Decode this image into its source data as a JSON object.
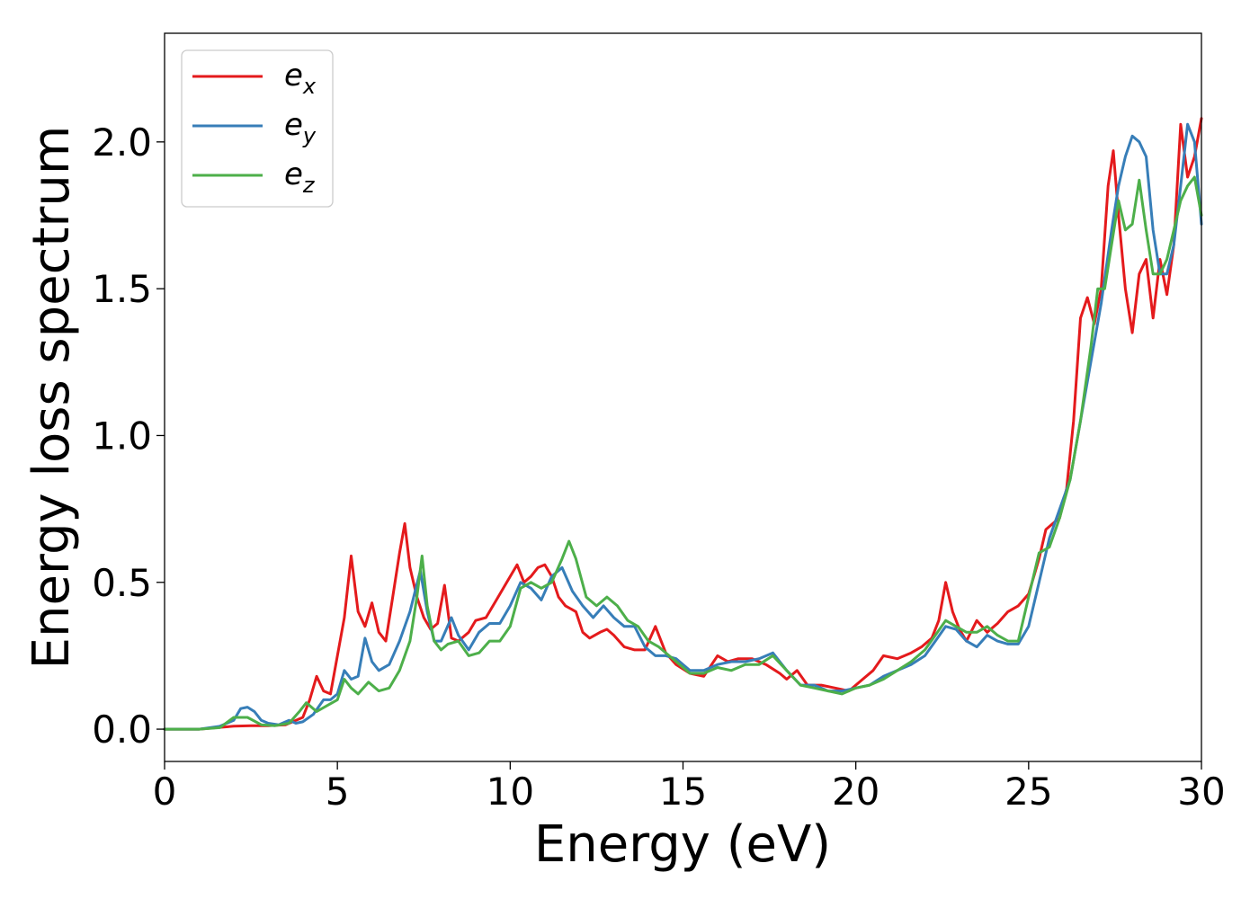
{
  "chart_data": {
    "type": "line",
    "title": "",
    "xlabel": "Energy (eV)",
    "ylabel": "Energy loss spectrum",
    "xlim": [
      0,
      30
    ],
    "ylim": [
      -0.11,
      2.37
    ],
    "xticks": [
      0,
      5,
      10,
      15,
      20,
      25,
      30
    ],
    "xtick_labels": [
      "0",
      "5",
      "10",
      "15",
      "20",
      "25",
      "30"
    ],
    "yticks": [
      0.0,
      0.5,
      1.0,
      1.5,
      2.0
    ],
    "ytick_labels": [
      "0.0",
      "0.5",
      "1.0",
      "1.5",
      "2.0"
    ],
    "grid": false,
    "legend_position": "top-left",
    "series": [
      {
        "name": "e_x",
        "legend_base": "e",
        "legend_sub": "x",
        "color": "#e41a1c",
        "x": [
          0,
          1,
          1.5,
          2,
          2.5,
          3,
          3.5,
          4,
          4.2,
          4.4,
          4.6,
          4.8,
          5.0,
          5.2,
          5.4,
          5.6,
          5.8,
          6.0,
          6.2,
          6.4,
          6.6,
          6.8,
          6.95,
          7.1,
          7.3,
          7.5,
          7.7,
          7.9,
          8.1,
          8.3,
          8.5,
          8.8,
          9.0,
          9.3,
          9.6,
          9.9,
          10.2,
          10.4,
          10.6,
          10.8,
          11.0,
          11.2,
          11.4,
          11.6,
          11.9,
          12.1,
          12.3,
          12.6,
          12.8,
          13.0,
          13.3,
          13.6,
          13.9,
          14.2,
          14.5,
          14.8,
          15.2,
          15.6,
          16.0,
          16.3,
          16.6,
          17.0,
          17.4,
          17.8,
          18.0,
          18.3,
          18.6,
          19.0,
          19.4,
          19.8,
          20.2,
          20.5,
          20.8,
          21.2,
          21.6,
          21.9,
          22.2,
          22.4,
          22.6,
          22.8,
          23.0,
          23.2,
          23.5,
          23.8,
          24.1,
          24.4,
          24.7,
          25.0,
          25.3,
          25.5,
          25.7,
          25.9,
          26.1,
          26.3,
          26.5,
          26.7,
          26.9,
          27.1,
          27.3,
          27.45,
          27.6,
          27.8,
          28.0,
          28.2,
          28.4,
          28.6,
          28.8,
          29.0,
          29.2,
          29.4,
          29.6,
          29.8,
          30.0
        ],
        "y": [
          0.0,
          0.0,
          0.005,
          0.01,
          0.012,
          0.012,
          0.015,
          0.04,
          0.1,
          0.18,
          0.13,
          0.12,
          0.25,
          0.38,
          0.59,
          0.4,
          0.35,
          0.43,
          0.33,
          0.3,
          0.45,
          0.6,
          0.7,
          0.55,
          0.45,
          0.38,
          0.34,
          0.36,
          0.49,
          0.31,
          0.3,
          0.33,
          0.37,
          0.38,
          0.44,
          0.5,
          0.56,
          0.5,
          0.52,
          0.55,
          0.56,
          0.52,
          0.45,
          0.42,
          0.4,
          0.33,
          0.31,
          0.33,
          0.34,
          0.32,
          0.28,
          0.27,
          0.27,
          0.35,
          0.26,
          0.22,
          0.19,
          0.18,
          0.25,
          0.23,
          0.24,
          0.24,
          0.22,
          0.19,
          0.17,
          0.2,
          0.15,
          0.15,
          0.14,
          0.13,
          0.17,
          0.2,
          0.25,
          0.24,
          0.26,
          0.28,
          0.31,
          0.37,
          0.5,
          0.4,
          0.34,
          0.3,
          0.37,
          0.33,
          0.36,
          0.4,
          0.42,
          0.46,
          0.58,
          0.68,
          0.7,
          0.72,
          0.82,
          1.05,
          1.4,
          1.47,
          1.38,
          1.5,
          1.85,
          1.97,
          1.75,
          1.5,
          1.35,
          1.55,
          1.6,
          1.4,
          1.6,
          1.48,
          1.65,
          2.06,
          1.88,
          1.95,
          2.08
        ]
      },
      {
        "name": "e_y",
        "legend_base": "e",
        "legend_sub": "y",
        "color": "#377eb8",
        "x": [
          0,
          1,
          1.6,
          2.0,
          2.2,
          2.4,
          2.6,
          2.8,
          3.0,
          3.3,
          3.6,
          3.8,
          4.0,
          4.3,
          4.6,
          4.8,
          5.0,
          5.2,
          5.4,
          5.6,
          5.8,
          6.0,
          6.2,
          6.5,
          6.8,
          7.1,
          7.4,
          7.6,
          7.8,
          8.0,
          8.3,
          8.5,
          8.8,
          9.1,
          9.4,
          9.7,
          10.0,
          10.3,
          10.6,
          10.9,
          11.2,
          11.5,
          11.8,
          12.1,
          12.4,
          12.7,
          13.0,
          13.3,
          13.6,
          13.9,
          14.2,
          14.5,
          14.8,
          15.2,
          15.6,
          16.0,
          16.4,
          16.8,
          17.2,
          17.6,
          18.0,
          18.4,
          18.8,
          19.2,
          19.6,
          20.0,
          20.4,
          20.8,
          21.2,
          21.6,
          22.0,
          22.3,
          22.6,
          22.9,
          23.2,
          23.5,
          23.8,
          24.1,
          24.4,
          24.7,
          25.0,
          25.3,
          25.6,
          25.9,
          26.2,
          26.5,
          26.8,
          27.1,
          27.4,
          27.6,
          27.8,
          28.0,
          28.2,
          28.4,
          28.6,
          28.8,
          29.0,
          29.2,
          29.4,
          29.6,
          29.8,
          30.0
        ],
        "y": [
          0.0,
          0.0,
          0.01,
          0.03,
          0.07,
          0.075,
          0.06,
          0.03,
          0.02,
          0.015,
          0.03,
          0.02,
          0.025,
          0.05,
          0.1,
          0.1,
          0.12,
          0.2,
          0.17,
          0.18,
          0.31,
          0.23,
          0.2,
          0.22,
          0.3,
          0.4,
          0.54,
          0.4,
          0.3,
          0.3,
          0.38,
          0.32,
          0.27,
          0.33,
          0.36,
          0.36,
          0.42,
          0.5,
          0.48,
          0.44,
          0.52,
          0.55,
          0.47,
          0.42,
          0.38,
          0.42,
          0.38,
          0.35,
          0.35,
          0.28,
          0.25,
          0.25,
          0.24,
          0.2,
          0.2,
          0.22,
          0.23,
          0.23,
          0.24,
          0.26,
          0.2,
          0.15,
          0.15,
          0.13,
          0.13,
          0.14,
          0.15,
          0.18,
          0.2,
          0.22,
          0.25,
          0.3,
          0.35,
          0.34,
          0.3,
          0.28,
          0.32,
          0.3,
          0.29,
          0.29,
          0.35,
          0.5,
          0.65,
          0.75,
          0.85,
          1.05,
          1.25,
          1.45,
          1.7,
          1.85,
          1.95,
          2.02,
          2.0,
          1.95,
          1.7,
          1.55,
          1.55,
          1.65,
          1.85,
          2.06,
          2.0,
          1.72
        ]
      },
      {
        "name": "e_z",
        "legend_base": "e",
        "legend_sub": "z",
        "color": "#4daf4a",
        "x": [
          0,
          1,
          1.6,
          2.0,
          2.4,
          2.8,
          3.2,
          3.6,
          3.9,
          4.1,
          4.4,
          4.7,
          5.0,
          5.2,
          5.4,
          5.6,
          5.9,
          6.2,
          6.5,
          6.8,
          7.1,
          7.3,
          7.45,
          7.6,
          7.8,
          8.0,
          8.2,
          8.5,
          8.8,
          9.1,
          9.4,
          9.7,
          10.0,
          10.3,
          10.6,
          10.9,
          11.2,
          11.5,
          11.7,
          11.9,
          12.2,
          12.5,
          12.8,
          13.1,
          13.4,
          13.7,
          14.0,
          14.3,
          14.6,
          14.9,
          15.2,
          15.6,
          16.0,
          16.4,
          16.8,
          17.2,
          17.6,
          18.0,
          18.4,
          18.8,
          19.2,
          19.6,
          20.0,
          20.4,
          20.8,
          21.2,
          21.6,
          22.0,
          22.3,
          22.6,
          22.9,
          23.2,
          23.5,
          23.8,
          24.1,
          24.4,
          24.7,
          25.0,
          25.3,
          25.6,
          25.9,
          26.2,
          26.5,
          26.8,
          27.0,
          27.2,
          27.4,
          27.6,
          27.8,
          28.0,
          28.2,
          28.4,
          28.6,
          28.8,
          29.0,
          29.2,
          29.4,
          29.6,
          29.8,
          30.0
        ],
        "y": [
          0.0,
          0.0,
          0.005,
          0.04,
          0.04,
          0.015,
          0.012,
          0.02,
          0.06,
          0.09,
          0.06,
          0.08,
          0.1,
          0.17,
          0.14,
          0.12,
          0.16,
          0.13,
          0.14,
          0.2,
          0.3,
          0.45,
          0.59,
          0.42,
          0.3,
          0.27,
          0.29,
          0.3,
          0.25,
          0.26,
          0.3,
          0.3,
          0.35,
          0.48,
          0.5,
          0.48,
          0.5,
          0.58,
          0.64,
          0.58,
          0.45,
          0.42,
          0.45,
          0.42,
          0.37,
          0.35,
          0.3,
          0.28,
          0.25,
          0.22,
          0.19,
          0.19,
          0.21,
          0.2,
          0.22,
          0.22,
          0.25,
          0.2,
          0.15,
          0.14,
          0.13,
          0.12,
          0.14,
          0.15,
          0.17,
          0.2,
          0.23,
          0.27,
          0.32,
          0.37,
          0.35,
          0.33,
          0.33,
          0.35,
          0.32,
          0.3,
          0.3,
          0.45,
          0.6,
          0.62,
          0.72,
          0.85,
          1.05,
          1.3,
          1.5,
          1.5,
          1.65,
          1.8,
          1.7,
          1.72,
          1.87,
          1.7,
          1.55,
          1.55,
          1.6,
          1.7,
          1.8,
          1.85,
          1.88,
          1.75
        ]
      }
    ]
  }
}
